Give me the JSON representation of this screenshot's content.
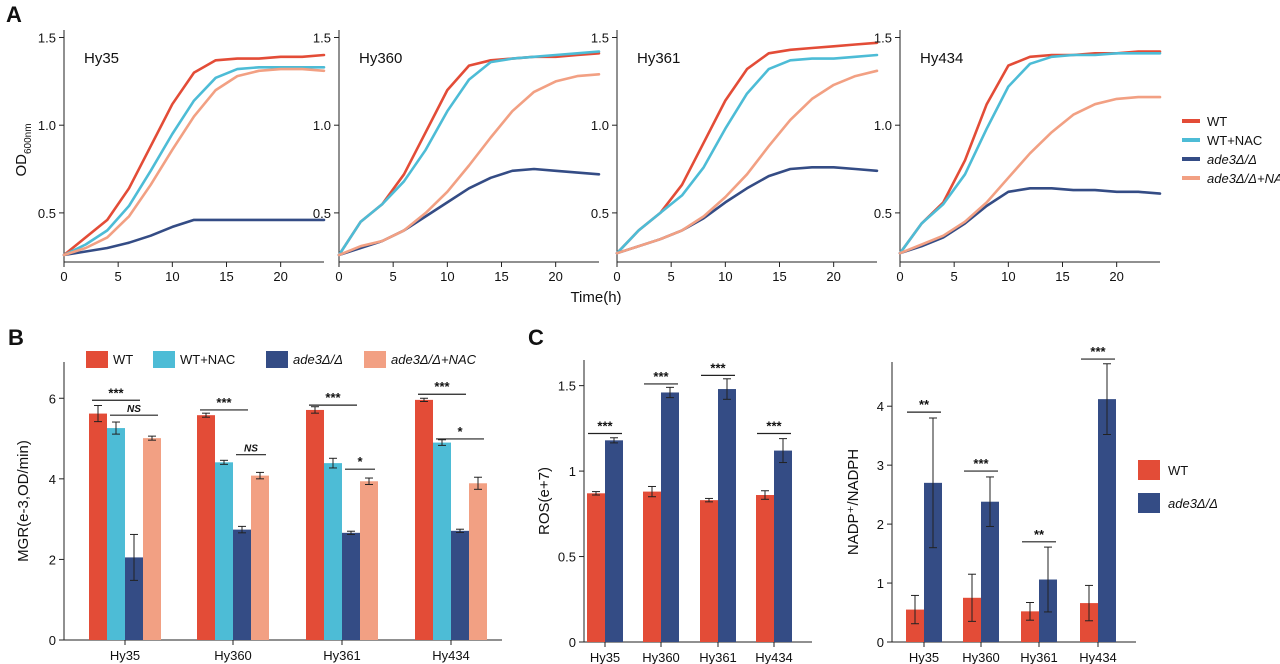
{
  "panels": {
    "A": "A",
    "B": "B",
    "C": "C"
  },
  "colors": {
    "WT": "#e34c37",
    "WT_NAC": "#4dbcd6",
    "ade3": "#344c85",
    "ade3_NAC": "#f2a083"
  },
  "growth": {
    "ylabel": "OD",
    "ylabel_sub": "600nm",
    "xlabel": "Time(h)",
    "xticks": [
      "0",
      "5",
      "10",
      "15",
      "20"
    ],
    "yticks": [
      "0.5",
      "1.0",
      "1.5"
    ],
    "legend": [
      "WT",
      "WT+NAC",
      "ade3Δ/Δ",
      "ade3Δ/Δ+NAC"
    ]
  },
  "mgr": {
    "ylabel": "MGR(e-3,OD/min)",
    "yticks": [
      "0",
      "2",
      "4",
      "6"
    ],
    "legend": [
      "WT",
      "WT+NAC",
      "ade3Δ/Δ",
      "ade3Δ/Δ+NAC"
    ]
  },
  "ros": {
    "ylabel": "ROS(e+7)",
    "yticks": [
      "0",
      "0.5",
      "1",
      "1.5"
    ]
  },
  "nadp": {
    "ylabel": "NADP⁺/NADPH",
    "yticks": [
      "0",
      "1",
      "2",
      "3",
      "4"
    ],
    "legend": [
      "WT",
      "ade3Δ/Δ"
    ]
  },
  "chart_data": [
    {
      "type": "line",
      "strain": "Hy35",
      "xlim": [
        0,
        24
      ],
      "ylim": [
        0.22,
        1.52
      ],
      "x": [
        0,
        2,
        4,
        6,
        8,
        10,
        12,
        14,
        16,
        18,
        20,
        22,
        24
      ],
      "series": [
        {
          "name": "WT",
          "values": [
            0.26,
            0.36,
            0.46,
            0.64,
            0.88,
            1.12,
            1.3,
            1.37,
            1.38,
            1.38,
            1.39,
            1.39,
            1.4
          ]
        },
        {
          "name": "WT+NAC",
          "values": [
            0.26,
            0.32,
            0.4,
            0.54,
            0.74,
            0.95,
            1.14,
            1.27,
            1.32,
            1.33,
            1.33,
            1.33,
            1.33
          ]
        },
        {
          "name": "ade3Δ/Δ",
          "values": [
            0.26,
            0.28,
            0.3,
            0.33,
            0.37,
            0.42,
            0.46,
            0.46,
            0.46,
            0.46,
            0.46,
            0.46,
            0.46
          ]
        },
        {
          "name": "ade3Δ/Δ+NAC",
          "values": [
            0.26,
            0.3,
            0.36,
            0.48,
            0.66,
            0.86,
            1.05,
            1.2,
            1.28,
            1.31,
            1.32,
            1.32,
            1.31
          ]
        }
      ]
    },
    {
      "type": "line",
      "strain": "Hy360",
      "xlim": [
        0,
        24
      ],
      "ylim": [
        0.22,
        1.52
      ],
      "x": [
        0,
        2,
        4,
        6,
        8,
        10,
        12,
        14,
        16,
        18,
        20,
        22,
        24
      ],
      "series": [
        {
          "name": "WT",
          "values": [
            0.26,
            0.45,
            0.55,
            0.72,
            0.96,
            1.2,
            1.34,
            1.37,
            1.38,
            1.39,
            1.39,
            1.4,
            1.41
          ]
        },
        {
          "name": "WT+NAC",
          "values": [
            0.26,
            0.45,
            0.55,
            0.68,
            0.86,
            1.08,
            1.26,
            1.36,
            1.38,
            1.39,
            1.4,
            1.41,
            1.42
          ]
        },
        {
          "name": "ade3Δ/Δ",
          "values": [
            0.26,
            0.3,
            0.34,
            0.4,
            0.48,
            0.56,
            0.64,
            0.7,
            0.74,
            0.75,
            0.74,
            0.73,
            0.72
          ]
        },
        {
          "name": "ade3Δ/Δ+NAC",
          "values": [
            0.26,
            0.31,
            0.34,
            0.4,
            0.5,
            0.62,
            0.77,
            0.93,
            1.08,
            1.19,
            1.25,
            1.28,
            1.29
          ]
        }
      ]
    },
    {
      "type": "line",
      "strain": "Hy361",
      "xlim": [
        0,
        24
      ],
      "ylim": [
        0.22,
        1.52
      ],
      "x": [
        0,
        2,
        4,
        6,
        8,
        10,
        12,
        14,
        16,
        18,
        20,
        22,
        24
      ],
      "series": [
        {
          "name": "WT",
          "values": [
            0.27,
            0.4,
            0.5,
            0.66,
            0.9,
            1.14,
            1.32,
            1.41,
            1.43,
            1.44,
            1.45,
            1.46,
            1.47
          ]
        },
        {
          "name": "WT+NAC",
          "values": [
            0.27,
            0.4,
            0.5,
            0.6,
            0.76,
            0.98,
            1.18,
            1.32,
            1.37,
            1.38,
            1.38,
            1.39,
            1.4
          ]
        },
        {
          "name": "ade3Δ/Δ",
          "values": [
            0.27,
            0.31,
            0.35,
            0.4,
            0.47,
            0.56,
            0.64,
            0.71,
            0.75,
            0.76,
            0.76,
            0.75,
            0.74
          ]
        },
        {
          "name": "ade3Δ/Δ+NAC",
          "values": [
            0.27,
            0.31,
            0.35,
            0.4,
            0.48,
            0.59,
            0.72,
            0.88,
            1.03,
            1.15,
            1.23,
            1.28,
            1.31
          ]
        }
      ]
    },
    {
      "type": "line",
      "strain": "Hy434",
      "xlim": [
        0,
        24
      ],
      "ylim": [
        0.22,
        1.52
      ],
      "x": [
        0,
        2,
        4,
        6,
        8,
        10,
        12,
        14,
        16,
        18,
        20,
        22,
        24
      ],
      "series": [
        {
          "name": "WT",
          "values": [
            0.27,
            0.44,
            0.56,
            0.8,
            1.12,
            1.34,
            1.39,
            1.4,
            1.4,
            1.41,
            1.41,
            1.42,
            1.42
          ]
        },
        {
          "name": "WT+NAC",
          "values": [
            0.27,
            0.44,
            0.55,
            0.72,
            0.98,
            1.22,
            1.35,
            1.39,
            1.4,
            1.4,
            1.41,
            1.41,
            1.41
          ]
        },
        {
          "name": "ade3Δ/Δ",
          "values": [
            0.27,
            0.31,
            0.36,
            0.44,
            0.54,
            0.62,
            0.64,
            0.64,
            0.63,
            0.63,
            0.62,
            0.62,
            0.61
          ]
        },
        {
          "name": "ade3Δ/Δ+NAC",
          "values": [
            0.27,
            0.32,
            0.37,
            0.45,
            0.56,
            0.7,
            0.84,
            0.96,
            1.06,
            1.12,
            1.15,
            1.16,
            1.16
          ]
        }
      ]
    },
    {
      "type": "bar",
      "categories": [
        "Hy35",
        "Hy360",
        "Hy361",
        "Hy434"
      ],
      "ylabel": "MGR(e-3,OD/min)",
      "ylim": [
        0,
        6.9
      ],
      "series": [
        {
          "name": "WT",
          "values": [
            5.62,
            5.58,
            5.71,
            5.96
          ],
          "errors": [
            0.2,
            0.05,
            0.08,
            0.04
          ]
        },
        {
          "name": "WT+NAC",
          "values": [
            5.26,
            4.41,
            4.39,
            4.9
          ],
          "errors": [
            0.15,
            0.05,
            0.12,
            0.07
          ]
        },
        {
          "name": "ade3Δ/Δ",
          "values": [
            2.05,
            2.74,
            2.66,
            2.71
          ],
          "errors": [
            0.57,
            0.08,
            0.04,
            0.04
          ]
        },
        {
          "name": "ade3Δ/Δ+NAC",
          "values": [
            5.01,
            4.08,
            3.94,
            3.89
          ],
          "errors": [
            0.05,
            0.08,
            0.08,
            0.15
          ]
        }
      ],
      "annotations": [
        {
          "text": "***",
          "category": 0,
          "from": 0,
          "to": 2,
          "y": 5.95
        },
        {
          "text": "NS",
          "category": 0,
          "from": 1,
          "to": 3,
          "y": 5.58
        },
        {
          "text": "***",
          "category": 1,
          "from": 0,
          "to": 2,
          "y": 5.71
        },
        {
          "text": "NS",
          "category": 1,
          "from": 2,
          "to": 3,
          "y": 4.6
        },
        {
          "text": "***",
          "category": 2,
          "from": 0,
          "to": 2,
          "y": 5.83
        },
        {
          "text": "*",
          "category": 2,
          "from": 2,
          "to": 3,
          "y": 4.24
        },
        {
          "text": "***",
          "category": 3,
          "from": 0,
          "to": 2,
          "y": 6.1
        },
        {
          "text": "*",
          "category": 3,
          "from": 1,
          "to": 3,
          "y": 4.99
        }
      ]
    },
    {
      "type": "bar",
      "categories": [
        "Hy35",
        "Hy360",
        "Hy361",
        "Hy434"
      ],
      "ylabel": "ROS(e+7)",
      "ylim": [
        0,
        1.65
      ],
      "series": [
        {
          "name": "WT",
          "values": [
            0.87,
            0.88,
            0.83,
            0.86
          ],
          "errors": [
            0.01,
            0.03,
            0.01,
            0.025
          ]
        },
        {
          "name": "ade3Δ/Δ",
          "values": [
            1.18,
            1.46,
            1.48,
            1.12
          ],
          "errors": [
            0.015,
            0.03,
            0.06,
            0.07
          ]
        }
      ],
      "annotations": [
        {
          "text": "***",
          "category": 0,
          "y": 1.22
        },
        {
          "text": "***",
          "category": 1,
          "y": 1.51
        },
        {
          "text": "***",
          "category": 2,
          "y": 1.56
        },
        {
          "text": "***",
          "category": 3,
          "y": 1.22
        }
      ]
    },
    {
      "type": "bar",
      "categories": [
        "Hy35",
        "Hy360",
        "Hy361",
        "Hy434"
      ],
      "ylabel": "NADP⁺/NADPH",
      "ylim": [
        0,
        4.75
      ],
      "series": [
        {
          "name": "WT",
          "values": [
            0.55,
            0.75,
            0.52,
            0.66
          ],
          "errors": [
            0.24,
            0.4,
            0.15,
            0.3
          ]
        },
        {
          "name": "ade3Δ/Δ",
          "values": [
            2.7,
            2.38,
            1.06,
            4.12
          ],
          "errors": [
            1.1,
            0.42,
            0.55,
            0.6
          ]
        }
      ],
      "annotations": [
        {
          "text": "**",
          "category": 0,
          "y": 3.9
        },
        {
          "text": "***",
          "category": 1,
          "y": 2.9
        },
        {
          "text": "**",
          "category": 2,
          "y": 1.7
        },
        {
          "text": "***",
          "category": 3,
          "y": 4.8
        }
      ]
    }
  ]
}
